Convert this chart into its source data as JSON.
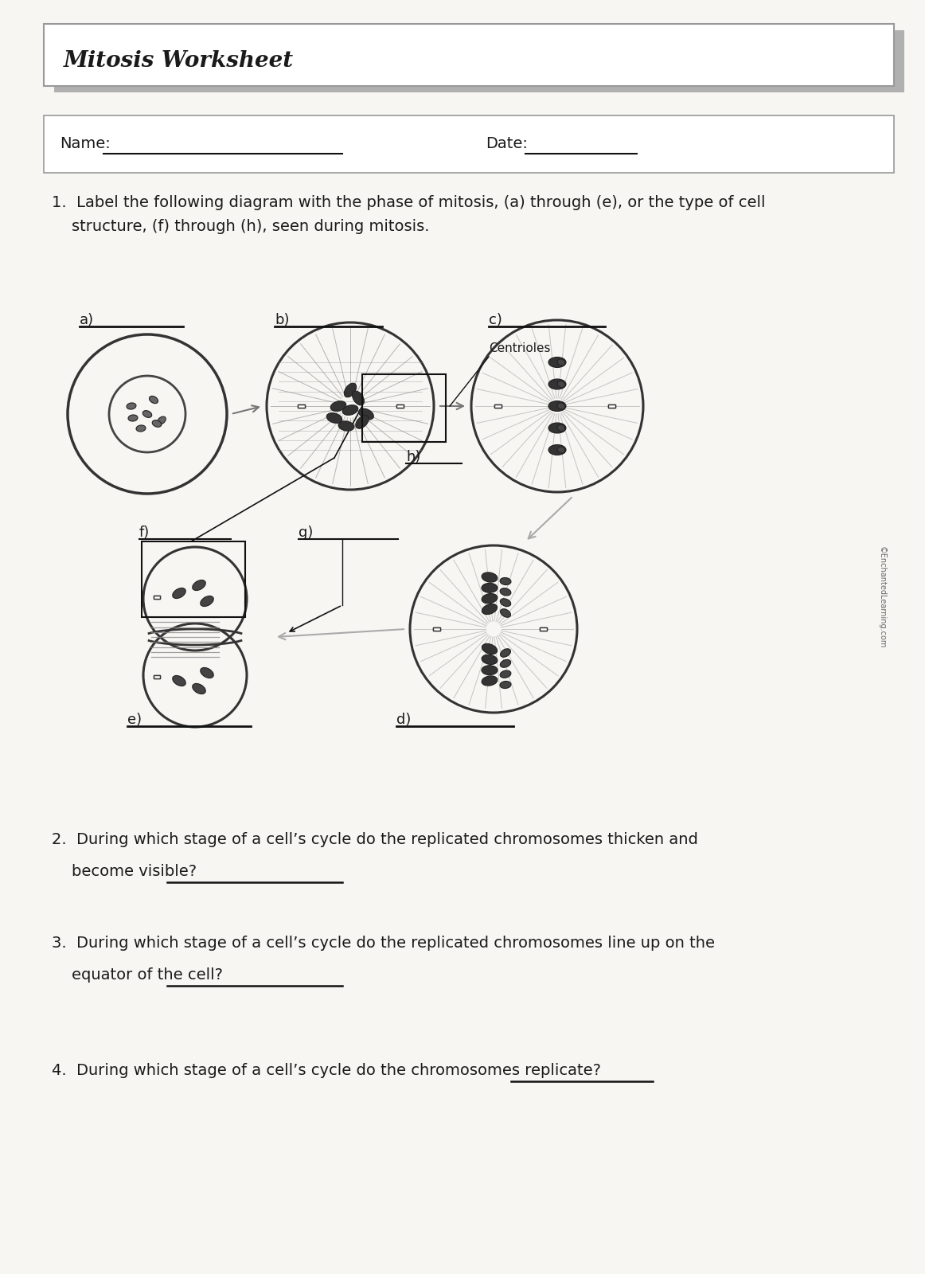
{
  "title": "Mitosis Worksheet",
  "page_color": "#f7f6f3",
  "name_label": "Name:",
  "date_label": "Date:",
  "q1_line1": "1.  Label the following diagram with the phase of mitosis, (a) through (e), or the type of cell",
  "q1_line2": "    structure, (f) through (h), seen during mitosis.",
  "q2_line1": "2.  During which stage of a cell’s cycle do the replicated chromosomes thicken and",
  "q2_line2": "    become visible?",
  "q3_line1": "3.  During which stage of a cell’s cycle do the replicated chromosomes line up on the",
  "q3_line2": "    equator of the cell?",
  "q4_line1": "4.  During which stage of a cell’s cycle do the chromosomes replicate?",
  "label_centrioles": "Centrioles",
  "copyright": "©EnchantedLearning.com",
  "font_color": "#1a1a1a",
  "line_color": "#111111",
  "gray_color": "#888888",
  "title_fontsize": 20,
  "body_fontsize": 14,
  "label_fontsize": 13
}
